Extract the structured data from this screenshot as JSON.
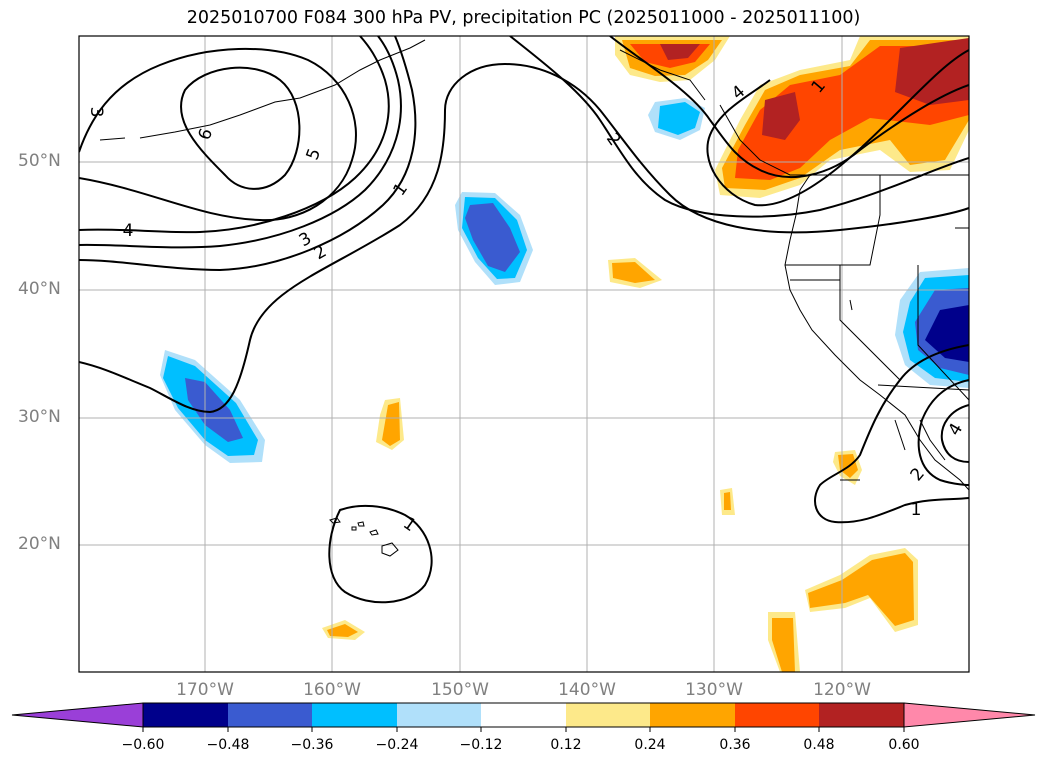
{
  "title": "2025010700 F084 300 hPa PV, precipitation PC (2025011000 - 2025011100)",
  "lat_labels": [
    "50°N",
    "40°N",
    "30°N",
    "20°N"
  ],
  "lon_labels": [
    "170°W",
    "160°W",
    "150°W",
    "140°W",
    "130°W",
    "120°W"
  ],
  "pv_contour_labels": [
    "3",
    "6",
    "5",
    "4",
    "3",
    "2",
    "1",
    "2",
    "4",
    "1",
    "1",
    "2",
    "4",
    "1"
  ],
  "colorbar": {
    "ticks": [
      "−0.60",
      "−0.48",
      "−0.36",
      "−0.24",
      "−0.12",
      "0.12",
      "0.24",
      "0.36",
      "0.48",
      "0.60"
    ],
    "colors": [
      "#9a3fd8",
      "#00008b",
      "#3a5bd0",
      "#00bfff",
      "#b0e0fa",
      "#ffffff",
      "#fde98a",
      "#ffa500",
      "#ff4500",
      "#b22222",
      "#ff88aa"
    ]
  }
}
